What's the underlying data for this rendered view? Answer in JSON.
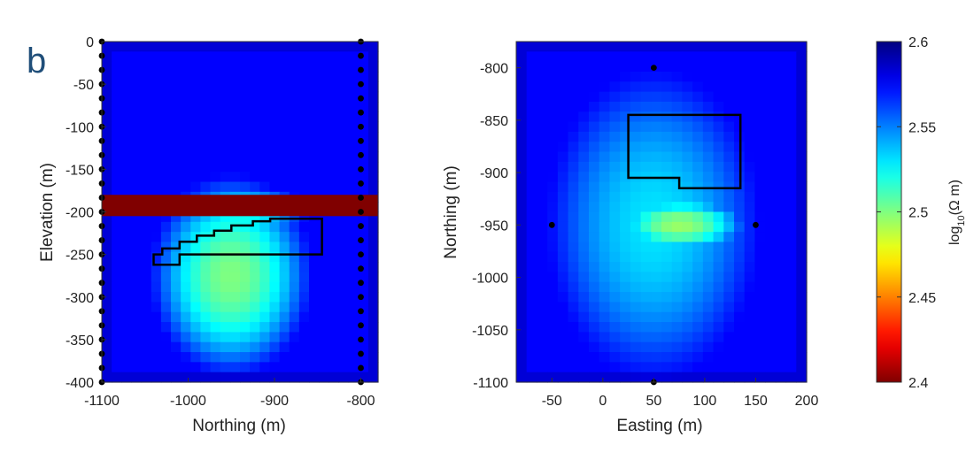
{
  "panel_label": "b",
  "colorbar": {
    "label_base": "log",
    "label_sub": "10",
    "label_rest": "(Ω m)",
    "range": [
      2.4,
      2.6
    ],
    "ticks": [
      2.4,
      2.45,
      2.5,
      2.55,
      2.6
    ],
    "tick_labels": [
      "2.4",
      "2.45",
      "2.5",
      "2.55",
      "2.6"
    ],
    "colormap": "jet"
  },
  "chart_data": [
    {
      "type": "heatmap",
      "name": "vertical-section",
      "xlabel": "Northing (m)",
      "ylabel": "Elevation (m)",
      "xlim": [
        -1100,
        -780
      ],
      "ylim": [
        -400,
        0
      ],
      "xticks": [
        -1100,
        -1000,
        -900,
        -800
      ],
      "xtick_labels": [
        "-1100",
        "-1000",
        "-900",
        "-800"
      ],
      "yticks": [
        0,
        -50,
        -100,
        -150,
        -200,
        -250,
        -300,
        -350,
        -400
      ],
      "ytick_labels": [
        "0",
        "-50",
        "-100",
        "-150",
        "-200",
        "-250",
        "-300",
        "-350",
        "-400"
      ],
      "background_value": 2.575,
      "anomalies": [
        {
          "center": [
            -950,
            -275
          ],
          "radius": [
            95,
            120
          ],
          "min_value": 2.5
        },
        {
          "center": [
            -940,
            -200
          ],
          "radius": [
            80,
            30
          ],
          "min_value": 2.52
        }
      ],
      "conductive_layer": {
        "y_range": [
          -205,
          -180
        ],
        "value": 2.4
      },
      "electrodes": [
        {
          "x": -1100,
          "y_from": 0,
          "y_to": -400,
          "count": 25
        },
        {
          "x": -800,
          "y_from": 0,
          "y_to": -400,
          "count": 25
        }
      ],
      "target_outline": [
        [
          -1040,
          -262
        ],
        [
          -1040,
          -250
        ],
        [
          -1030,
          -250
        ],
        [
          -1030,
          -243
        ],
        [
          -1010,
          -243
        ],
        [
          -1010,
          -235
        ],
        [
          -990,
          -235
        ],
        [
          -990,
          -228
        ],
        [
          -970,
          -228
        ],
        [
          -970,
          -222
        ],
        [
          -950,
          -222
        ],
        [
          -950,
          -216
        ],
        [
          -925,
          -216
        ],
        [
          -925,
          -211
        ],
        [
          -905,
          -211
        ],
        [
          -905,
          -208
        ],
        [
          -845,
          -208
        ],
        [
          -845,
          -250
        ],
        [
          -1010,
          -250
        ],
        [
          -1010,
          -262
        ]
      ]
    },
    {
      "type": "heatmap",
      "name": "plan-view",
      "xlabel": "Easting (m)",
      "ylabel": "Northing (m)",
      "xlim": [
        -85,
        200
      ],
      "ylim": [
        -1100,
        -775
      ],
      "xticks": [
        -50,
        0,
        50,
        100,
        150,
        200
      ],
      "xtick_labels": [
        "-50",
        "0",
        "50",
        "100",
        "150",
        "200"
      ],
      "yticks": [
        -800,
        -850,
        -900,
        -950,
        -1000,
        -1050,
        -1100
      ],
      "ytick_labels": [
        "-800",
        "-850",
        "-900",
        "-950",
        "-1000",
        "-1050",
        "-1100"
      ],
      "background_value": 2.575,
      "anomalies": [
        {
          "center": [
            50,
            -950
          ],
          "radius": [
            105,
            150
          ],
          "min_value": 2.53
        },
        {
          "center": [
            75,
            -950
          ],
          "radius": [
            70,
            30
          ],
          "min_value": 2.495
        }
      ],
      "electrodes_points": [
        [
          50,
          -800
        ],
        [
          -50,
          -950
        ],
        [
          150,
          -950
        ],
        [
          50,
          -1100
        ]
      ],
      "target_outline": [
        [
          25,
          -845
        ],
        [
          135,
          -845
        ],
        [
          135,
          -915
        ],
        [
          75,
          -915
        ],
        [
          75,
          -905
        ],
        [
          25,
          -905
        ]
      ]
    }
  ]
}
